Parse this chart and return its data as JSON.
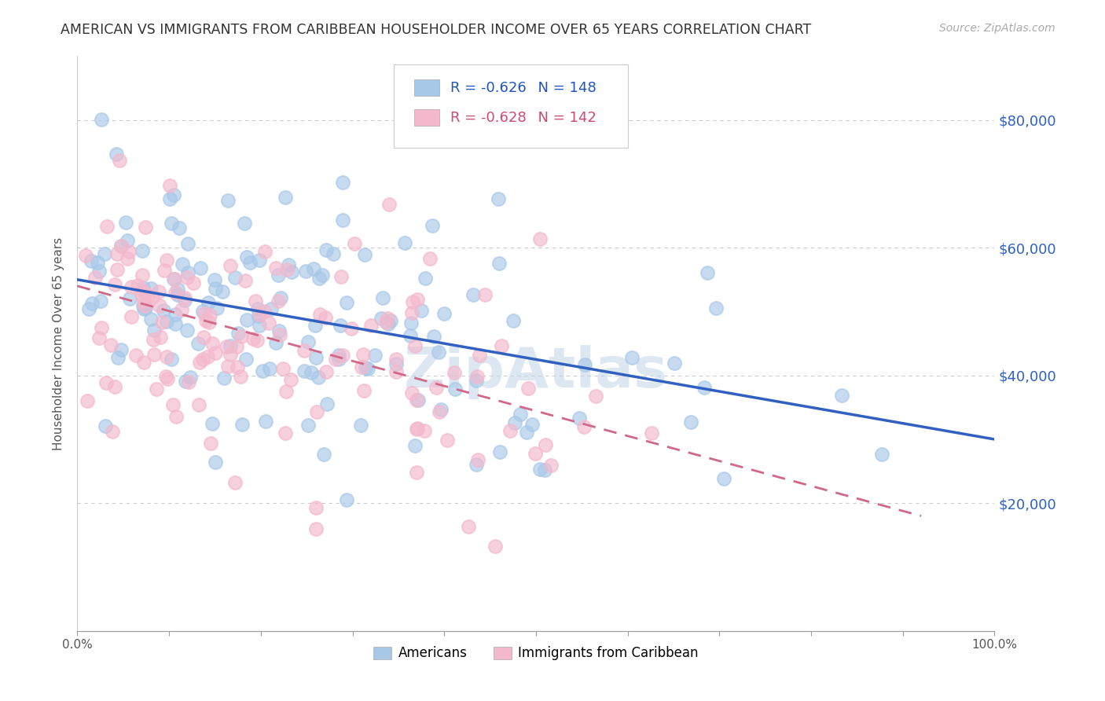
{
  "title": "AMERICAN VS IMMIGRANTS FROM CARIBBEAN HOUSEHOLDER INCOME OVER 65 YEARS CORRELATION CHART",
  "source": "Source: ZipAtlas.com",
  "ylabel": "Householder Income Over 65 years",
  "watermark": "ZipAtlas",
  "R_american": -0.626,
  "N_american": 148,
  "R_caribbean": -0.628,
  "N_caribbean": 142,
  "color_american": "#a8c8e8",
  "color_caribbean": "#f4b8cc",
  "color_trend_american": "#3060c0",
  "color_trend_caribbean": "#d06888",
  "ymin": 0,
  "ymax": 90000,
  "xmin": 0.0,
  "xmax": 1.0,
  "yticks": [
    20000,
    40000,
    60000,
    80000
  ],
  "ytick_labels": [
    "$20,000",
    "$40,000",
    "$60,000",
    "$80,000"
  ],
  "grid_color": "#cccccc",
  "background_color": "#ffffff",
  "title_fontsize": 12.5,
  "source_fontsize": 10,
  "ylabel_fontsize": 11,
  "legend_fontsize": 13,
  "watermark_fontsize": 52,
  "watermark_color": "#c0d4e8",
  "right_tick_color": "#3060c0",
  "seed": 42,
  "trend_am_x0": 0.0,
  "trend_am_y0": 55000,
  "trend_am_x1": 1.0,
  "trend_am_y1": 30000,
  "trend_car_x0": 0.0,
  "trend_car_y0": 54000,
  "trend_car_x1": 0.92,
  "trend_car_y1": 18000
}
